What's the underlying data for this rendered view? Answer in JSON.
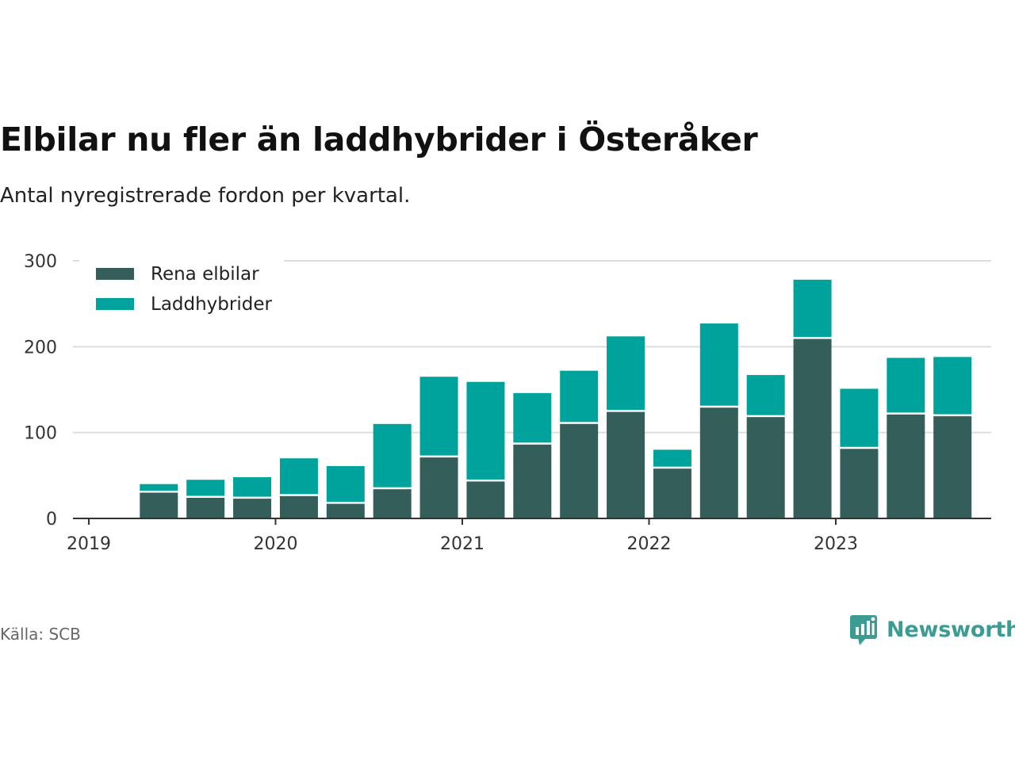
{
  "title": "Elbilar nu fler än laddhybrider i Österåker",
  "subtitle": "Antal nyregistrerade fordon per kvartal.",
  "source": "Källa: SCB",
  "brand": "Newsworthy",
  "colors": {
    "elbilar": "#335e5a",
    "laddhybrider": "#00a39b",
    "grid": "#dddddd",
    "axis": "#333333",
    "brand": "#3c9c94"
  },
  "chart_data": {
    "type": "bar",
    "stacked": true,
    "title": "Elbilar nu fler än laddhybrider i Österåker",
    "xlabel": "",
    "ylabel": "",
    "ylim": [
      0,
      300
    ],
    "yticks": [
      0,
      100,
      200,
      300
    ],
    "ytick_labels": [
      "0",
      "100",
      "200",
      "300"
    ],
    "xticks": [
      "2019",
      "2020",
      "2021",
      "2022",
      "2023"
    ],
    "legend_position": "top-left",
    "grid": true,
    "categories": [
      "2019 Q2",
      "2019 Q3",
      "2019 Q4",
      "2020 Q1",
      "2020 Q2",
      "2020 Q3",
      "2020 Q4",
      "2021 Q1",
      "2021 Q2",
      "2021 Q3",
      "2021 Q4",
      "2022 Q1",
      "2022 Q2",
      "2022 Q3",
      "2022 Q4",
      "2023 Q1",
      "2023 Q2",
      "2023 Q3"
    ],
    "series": [
      {
        "name": "Rena elbilar",
        "values": [
          30,
          24,
          23,
          26,
          17,
          34,
          71,
          43,
          86,
          110,
          124,
          58,
          129,
          118,
          209,
          81,
          121,
          119
        ]
      },
      {
        "name": "Laddhybrider",
        "values": [
          10,
          21,
          25,
          44,
          44,
          76,
          94,
          116,
          60,
          62,
          88,
          22,
          98,
          49,
          69,
          70,
          66,
          69
        ]
      }
    ]
  }
}
